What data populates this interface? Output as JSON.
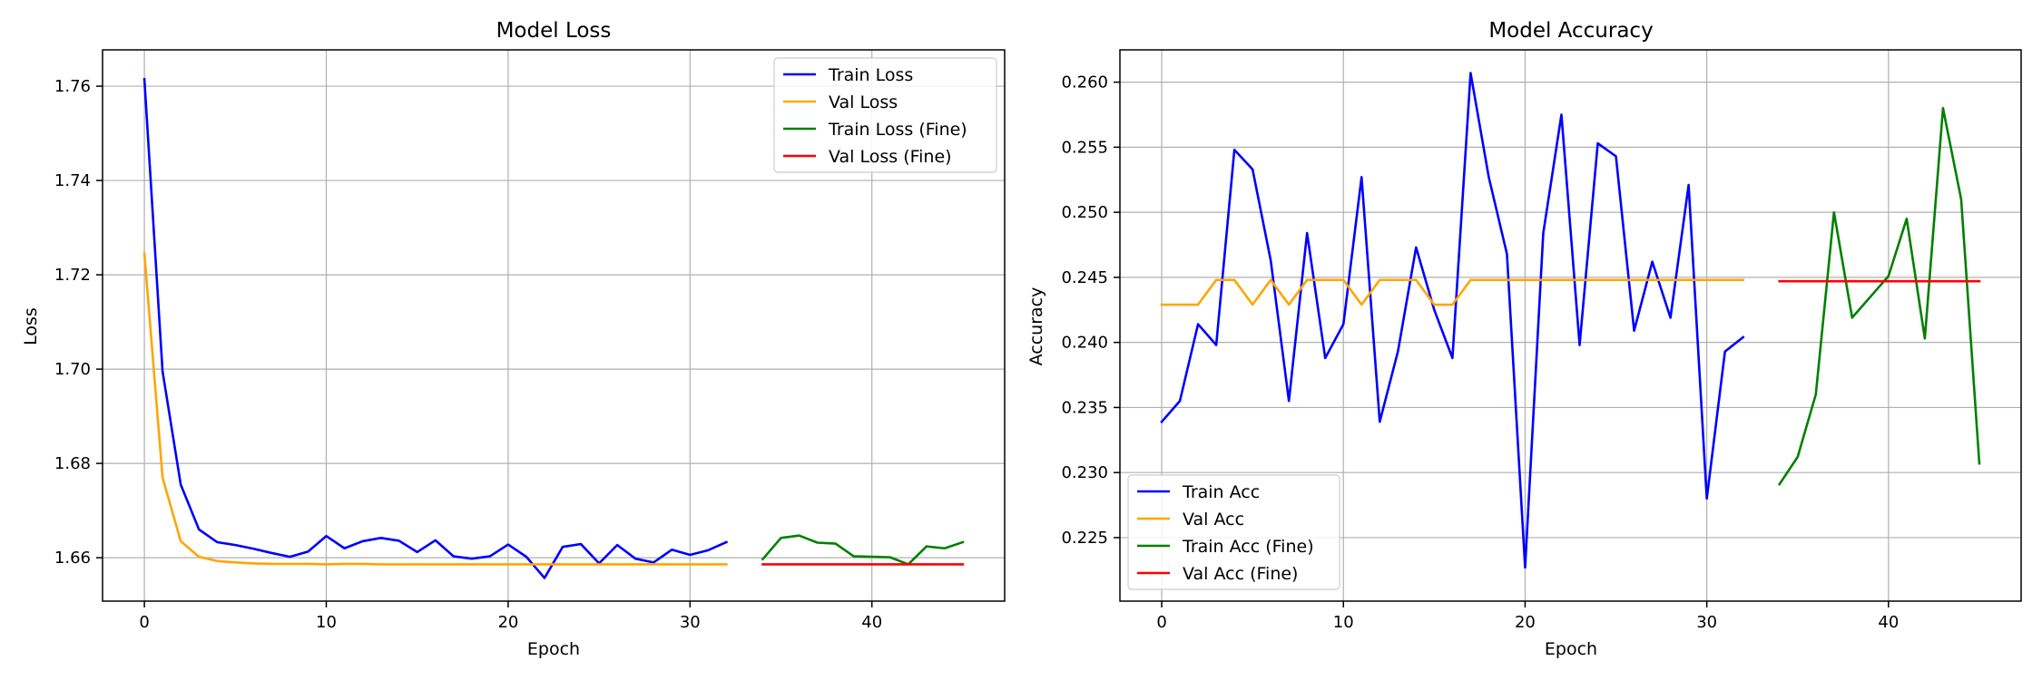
{
  "chart_data": [
    {
      "type": "line",
      "title": "Model Loss",
      "xlabel": "Epoch",
      "ylabel": "Loss",
      "xlim": [
        -2.3,
        47.3
      ],
      "ylim": [
        1.6508,
        1.7677
      ],
      "xticks": [
        0,
        10,
        20,
        30,
        40
      ],
      "xtick_labels": [
        "0",
        "10",
        "20",
        "30",
        "40"
      ],
      "yticks": [
        1.66,
        1.68,
        1.7,
        1.72,
        1.74,
        1.76
      ],
      "ytick_labels": [
        "1.66",
        "1.68",
        "1.70",
        "1.72",
        "1.74",
        "1.76"
      ],
      "grid": true,
      "legend_position": "top-right",
      "series": [
        {
          "name": "Train Loss",
          "color": "#0000ff",
          "x": [
            0,
            1,
            2,
            3,
            4,
            5,
            6,
            7,
            8,
            9,
            10,
            11,
            12,
            13,
            14,
            15,
            16,
            17,
            18,
            19,
            20,
            21,
            22,
            23,
            24,
            25,
            26,
            27,
            28,
            29,
            30,
            31,
            32
          ],
          "values": [
            1.7615,
            1.6995,
            1.6755,
            1.666,
            1.6633,
            1.6627,
            1.6619,
            1.661,
            1.6602,
            1.6613,
            1.6646,
            1.662,
            1.6635,
            1.6642,
            1.6636,
            1.6612,
            1.6637,
            1.6603,
            1.6598,
            1.6603,
            1.6628,
            1.6602,
            1.6557,
            1.6623,
            1.6629,
            1.6588,
            1.6627,
            1.6598,
            1.659,
            1.6617,
            1.6606,
            1.6616,
            1.6633
          ]
        },
        {
          "name": "Val Loss",
          "color": "#ffa500",
          "x": [
            0,
            1,
            2,
            3,
            4,
            5,
            6,
            7,
            8,
            9,
            10,
            11,
            12,
            13,
            14,
            15,
            16,
            17,
            18,
            19,
            20,
            21,
            22,
            23,
            24,
            25,
            26,
            27,
            28,
            29,
            30,
            31,
            32
          ],
          "values": [
            1.7245,
            1.677,
            1.6635,
            1.6602,
            1.6593,
            1.659,
            1.6588,
            1.6587,
            1.6587,
            1.6587,
            1.6586,
            1.6587,
            1.6587,
            1.6586,
            1.6586,
            1.6586,
            1.6586,
            1.6586,
            1.6586,
            1.6586,
            1.6586,
            1.6586,
            1.6586,
            1.6586,
            1.6586,
            1.6586,
            1.6586,
            1.6586,
            1.6586,
            1.6586,
            1.6586,
            1.6586,
            1.6586
          ]
        },
        {
          "name": "Train Loss (Fine)",
          "color": "#008000",
          "x": [
            34,
            35,
            36,
            37,
            38,
            39,
            40,
            41,
            42,
            43,
            44,
            45
          ],
          "values": [
            1.6597,
            1.6642,
            1.6647,
            1.6632,
            1.663,
            1.6603,
            1.6602,
            1.6601,
            1.6586,
            1.6624,
            1.662,
            1.6633
          ]
        },
        {
          "name": "Val Loss (Fine)",
          "color": "#ff0000",
          "x": [
            34,
            35,
            36,
            37,
            38,
            39,
            40,
            41,
            42,
            43,
            44,
            45
          ],
          "values": [
            1.6586,
            1.6586,
            1.6586,
            1.6586,
            1.6586,
            1.6586,
            1.6586,
            1.6586,
            1.6586,
            1.6586,
            1.6586,
            1.6586
          ]
        }
      ]
    },
    {
      "type": "line",
      "title": "Model Accuracy",
      "xlabel": "Epoch",
      "ylabel": "Accuracy",
      "xlim": [
        -2.3,
        47.3
      ],
      "ylim": [
        0.22012,
        0.26248
      ],
      "xticks": [
        0,
        10,
        20,
        30,
        40
      ],
      "xtick_labels": [
        "0",
        "10",
        "20",
        "30",
        "40"
      ],
      "yticks": [
        0.225,
        0.23,
        0.235,
        0.24,
        0.245,
        0.25,
        0.255,
        0.26
      ],
      "ytick_labels": [
        "0.225",
        "0.230",
        "0.235",
        "0.240",
        "0.245",
        "0.250",
        "0.255",
        "0.260"
      ],
      "grid": true,
      "legend_position": "bottom-left",
      "series": [
        {
          "name": "Train Acc",
          "color": "#0000ff",
          "x": [
            0,
            1,
            2,
            3,
            4,
            5,
            6,
            7,
            8,
            9,
            10,
            11,
            12,
            13,
            14,
            15,
            16,
            17,
            18,
            19,
            20,
            21,
            22,
            23,
            24,
            25,
            26,
            27,
            28,
            29,
            30,
            31,
            32
          ],
          "values": [
            0.2339,
            0.2355,
            0.2414,
            0.2398,
            0.2548,
            0.2533,
            0.2463,
            0.2355,
            0.2484,
            0.2388,
            0.2414,
            0.2527,
            0.2339,
            0.2393,
            0.2473,
            0.2425,
            0.2388,
            0.2607,
            0.2527,
            0.2468,
            0.2227,
            0.2484,
            0.2575,
            0.2398,
            0.2553,
            0.2543,
            0.2409,
            0.2462,
            0.2419,
            0.2521,
            0.228,
            0.2393,
            0.2404
          ]
        },
        {
          "name": "Val Acc",
          "color": "#ffa500",
          "x": [
            0,
            1,
            2,
            3,
            4,
            5,
            6,
            7,
            8,
            9,
            10,
            11,
            12,
            13,
            14,
            15,
            16,
            17,
            18,
            19,
            20,
            21,
            22,
            23,
            24,
            25,
            26,
            27,
            28,
            29,
            30,
            31,
            32
          ],
          "values": [
            0.2429,
            0.2429,
            0.2429,
            0.2448,
            0.2448,
            0.2429,
            0.2448,
            0.2429,
            0.2448,
            0.2448,
            0.2448,
            0.2429,
            0.2448,
            0.2448,
            0.2448,
            0.2429,
            0.2429,
            0.2448,
            0.2448,
            0.2448,
            0.2448,
            0.2448,
            0.2448,
            0.2448,
            0.2448,
            0.2448,
            0.2448,
            0.2448,
            0.2448,
            0.2448,
            0.2448,
            0.2448,
            0.2448
          ]
        },
        {
          "name": "Train Acc (Fine)",
          "color": "#008000",
          "x": [
            34,
            35,
            36,
            37,
            38,
            39,
            40,
            41,
            42,
            43,
            44,
            45
          ],
          "values": [
            0.2291,
            0.2312,
            0.236,
            0.25,
            0.2419,
            0.2435,
            0.2451,
            0.2495,
            0.2403,
            0.258,
            0.251,
            0.2307
          ]
        },
        {
          "name": "Val Acc (Fine)",
          "color": "#ff0000",
          "x": [
            34,
            35,
            36,
            37,
            38,
            39,
            40,
            41,
            42,
            43,
            44,
            45
          ],
          "values": [
            0.2447,
            0.2447,
            0.2447,
            0.2447,
            0.2447,
            0.2447,
            0.2447,
            0.2447,
            0.2447,
            0.2447,
            0.2447,
            0.2447
          ]
        }
      ]
    }
  ]
}
